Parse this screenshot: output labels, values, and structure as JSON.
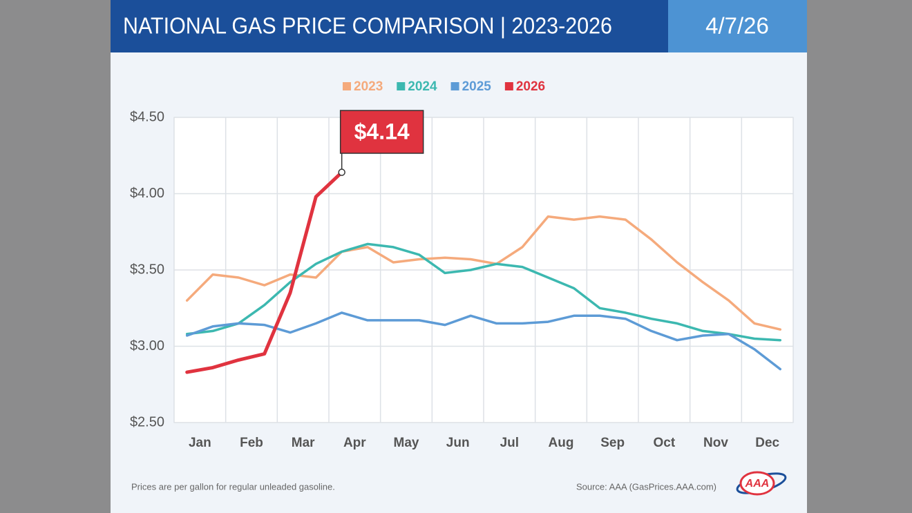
{
  "header": {
    "title": "NATIONAL GAS PRICE COMPARISON | 2023-2026",
    "date": "4/7/26"
  },
  "chart_data": {
    "type": "line",
    "categories": [
      "Jan",
      null,
      "Feb",
      null,
      "Mar",
      null,
      "Apr",
      null,
      "May",
      null,
      "Jun",
      null,
      "Jul",
      null,
      "Aug",
      null,
      "Sep",
      null,
      "Oct",
      null,
      "Nov",
      null,
      "Dec",
      null
    ],
    "series": [
      {
        "name": "2023",
        "color": "#f5aa7c",
        "values": [
          3.3,
          3.47,
          3.45,
          3.4,
          3.47,
          3.45,
          3.62,
          3.65,
          3.55,
          3.57,
          3.58,
          3.57,
          3.54,
          3.65,
          3.85,
          3.83,
          3.85,
          3.83,
          3.7,
          3.55,
          3.42,
          3.3,
          3.15,
          3.11
        ]
      },
      {
        "name": "2024",
        "color": "#3cb8b0",
        "values": [
          3.08,
          3.1,
          3.15,
          3.27,
          3.42,
          3.54,
          3.62,
          3.67,
          3.65,
          3.6,
          3.48,
          3.5,
          3.54,
          3.52,
          3.45,
          3.38,
          3.25,
          3.22,
          3.18,
          3.15,
          3.1,
          3.08,
          3.05,
          3.04
        ]
      },
      {
        "name": "2025",
        "color": "#5d9bd6",
        "values": [
          3.07,
          3.13,
          3.15,
          3.14,
          3.09,
          3.15,
          3.22,
          3.17,
          3.17,
          3.17,
          3.14,
          3.2,
          3.15,
          3.15,
          3.16,
          3.2,
          3.2,
          3.18,
          3.1,
          3.04,
          3.07,
          3.08,
          2.98,
          2.85
        ]
      },
      {
        "name": "2026",
        "color": "#e0333f",
        "values": [
          2.83,
          2.86,
          2.91,
          2.95,
          3.35,
          3.98,
          4.14,
          null,
          null,
          null,
          null,
          null,
          null,
          null,
          null,
          null,
          null,
          null,
          null,
          null,
          null,
          null,
          null,
          null
        ],
        "value_labels": [
          null,
          null,
          null,
          null,
          null,
          null,
          "$4.14",
          null,
          null,
          null,
          null,
          null,
          null,
          null,
          null,
          null,
          null,
          null,
          null,
          null,
          null,
          null,
          null,
          null
        ]
      }
    ],
    "ylim": [
      2.5,
      4.5
    ],
    "yticks": [
      {
        "value": 2.5,
        "label": "$2.50"
      },
      {
        "value": 3,
        "label": "$3.00"
      },
      {
        "value": 3.5,
        "label": "$3.50"
      },
      {
        "value": 4,
        "label": "$4.00"
      },
      {
        "value": 4.5,
        "label": "$4.50"
      }
    ],
    "grid": true,
    "legend": "top"
  },
  "footer": {
    "note": "Prices are per gallon for regular unleaded gasoline.",
    "source": "Source: AAA (GasPrices.AAA.com)",
    "logo": "AAA"
  }
}
